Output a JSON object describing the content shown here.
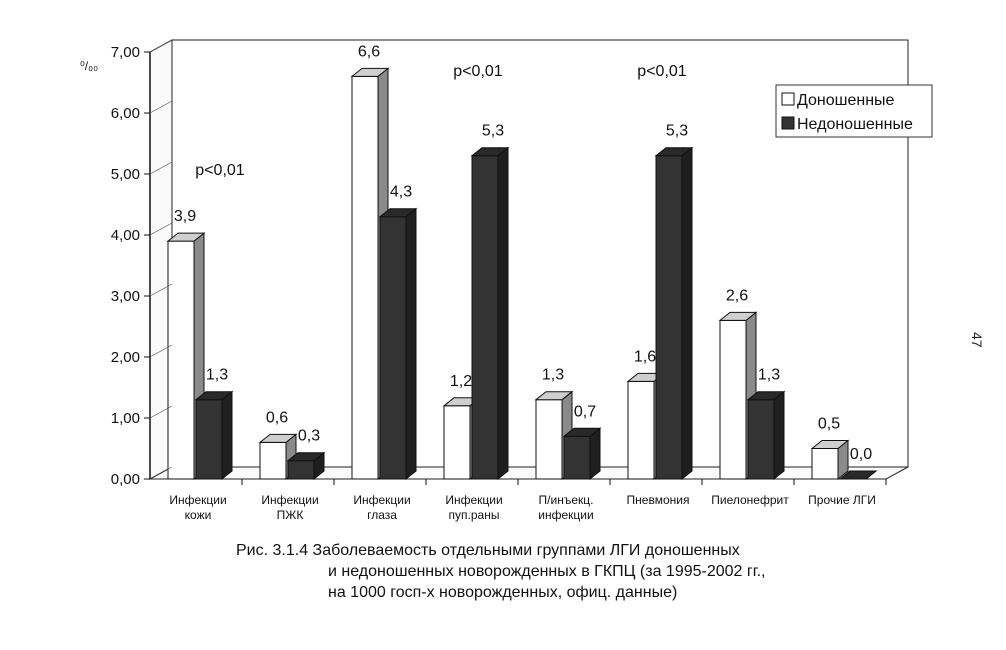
{
  "chart_data": {
    "type": "bar",
    "categories": [
      [
        "Инфекции",
        "кожи"
      ],
      [
        "Инфекции",
        "ПЖК"
      ],
      [
        "Инфекции",
        "глаза"
      ],
      [
        "Инфекции",
        "пуп.раны"
      ],
      [
        "П/инъекц.",
        "инфекции"
      ],
      [
        "Пневмония"
      ],
      [
        "Пиелонефрит"
      ],
      [
        "Прочие ЛГИ"
      ]
    ],
    "series": [
      {
        "name": "Доношенные",
        "color": "#ffffff",
        "values": [
          3.9,
          0.6,
          6.6,
          1.2,
          1.3,
          1.6,
          2.6,
          0.5
        ],
        "labels": [
          "3,9",
          "0,6",
          "6,6",
          "1,2",
          "1,3",
          "1,6",
          "2,6",
          "0,5"
        ]
      },
      {
        "name": "Недоношенные",
        "color": "#333333",
        "values": [
          1.3,
          0.3,
          4.3,
          5.3,
          0.7,
          5.3,
          1.3,
          0.0
        ],
        "labels": [
          "1,3",
          "0,3",
          "4,3",
          "5,3",
          "0,7",
          "5,3",
          "1,3",
          "0,0"
        ]
      }
    ],
    "ylim": [
      0,
      7
    ],
    "yticks": [
      "0,00",
      "1,00",
      "2,00",
      "3,00",
      "4,00",
      "5,00",
      "6,00",
      "7,00"
    ],
    "ylabel": "⁰/₀₀",
    "grid": false,
    "legend_position": "top-right",
    "annotations": [
      {
        "text": "p<0,01",
        "category_index": 0
      },
      {
        "text": "p<0,01",
        "category_index": 3
      },
      {
        "text": "p<0,01",
        "category_index": 5
      }
    ]
  },
  "caption": {
    "line1": "Рис. 3.1.4 Заболеваемость отдельными группами ЛГИ доношенных",
    "line2": "и недоношенных новорожденных в ГКПЦ (за 1995-2002 гг.,",
    "line3": "на 1000 госп-х новорожденных, офиц. данные)"
  },
  "page_number": "47"
}
